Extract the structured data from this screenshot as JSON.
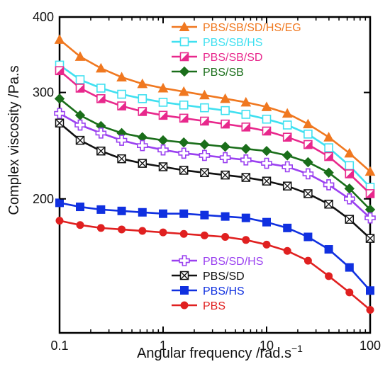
{
  "chart_data": {
    "type": "line",
    "title": "",
    "xlabel": "Angular frequency /rad.s",
    "xlabel_sup": "−1",
    "ylabel": "Complex viscosity /Pa.s",
    "x_scale": "log",
    "y_scale": "log",
    "xlim": [
      0.1,
      100
    ],
    "ylim": [
      120,
      400
    ],
    "x_ticks": [
      {
        "value": 0.1,
        "label": "0.1"
      },
      {
        "value": 1,
        "label": "1"
      },
      {
        "value": 10,
        "label": "10"
      },
      {
        "value": 100,
        "label": "100"
      }
    ],
    "y_ticks": [
      {
        "value": 200,
        "label": "200"
      },
      {
        "value": 300,
        "label": "300"
      },
      {
        "value": 400,
        "label": "400"
      }
    ],
    "grid": false,
    "legend_groups": [
      "upper-left",
      "lower-left"
    ],
    "x": [
      0.1,
      0.158,
      0.251,
      0.398,
      0.631,
      1,
      1.585,
      2.512,
      3.981,
      6.31,
      10,
      15.85,
      25.12,
      39.81,
      63.1,
      100
    ],
    "series": [
      {
        "name": "PBS/SB/SD/HS/EG",
        "color": "#f07820",
        "marker": "triangle",
        "legend_group": 0,
        "values": [
          367,
          344,
          329,
          318,
          310,
          305,
          301,
          297,
          293,
          289,
          284,
          277,
          266,
          253,
          238,
          222
        ]
      },
      {
        "name": "PBS/SB/HS",
        "color": "#40e0f0",
        "marker": "square-open",
        "legend_group": 0,
        "values": [
          333,
          315,
          305,
          298,
          293,
          289,
          286,
          283,
          280,
          276,
          271,
          265,
          256,
          243,
          227,
          209
        ]
      },
      {
        "name": "PBS/SB/SD",
        "color": "#e8288c",
        "marker": "square-half",
        "legend_group": 0,
        "values": [
          326,
          305,
          293,
          285,
          279,
          275,
          272,
          269,
          266,
          263,
          259,
          253,
          246,
          235,
          220,
          204
        ]
      },
      {
        "name": "PBS/SB",
        "color": "#1a6e1a",
        "marker": "diamond",
        "legend_group": 0,
        "values": [
          293,
          275,
          264,
          257,
          253,
          250,
          248,
          246,
          244,
          242,
          240,
          236,
          230,
          221,
          208,
          192
        ]
      },
      {
        "name": "PBS/SD/HS",
        "color": "#9a40f0",
        "marker": "cross-open",
        "legend_group": 1,
        "values": [
          277,
          265,
          257,
          250,
          245,
          241,
          238,
          236,
          234,
          232,
          229,
          226,
          220,
          211,
          200,
          186
        ]
      },
      {
        "name": "PBS/SD",
        "color": "#111111",
        "marker": "square-x",
        "legend_group": 1,
        "values": [
          267,
          250,
          240,
          233,
          229,
          226,
          223,
          221,
          219,
          217,
          214,
          210,
          204,
          196,
          185,
          172
        ]
      },
      {
        "name": "PBS/HS",
        "color": "#1030e0",
        "marker": "square",
        "legend_group": 1,
        "values": [
          197,
          194,
          192,
          191,
          190,
          189,
          189,
          188,
          187,
          186,
          183,
          179,
          173,
          165,
          154,
          141
        ]
      },
      {
        "name": "PBS",
        "color": "#e02020",
        "marker": "circle",
        "legend_group": 1,
        "values": [
          184,
          181,
          179,
          178,
          177,
          176,
          175,
          174,
          173,
          171,
          168,
          164,
          158,
          149,
          140,
          131
        ]
      }
    ]
  }
}
